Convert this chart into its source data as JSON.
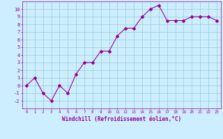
{
  "x": [
    0,
    1,
    2,
    3,
    4,
    5,
    6,
    7,
    8,
    9,
    10,
    11,
    12,
    13,
    14,
    15,
    16,
    17,
    18,
    19,
    20,
    21,
    22,
    23
  ],
  "y": [
    0,
    1,
    -1,
    -2,
    0,
    -1,
    1.5,
    3,
    3,
    4.5,
    4.5,
    6.5,
    7.5,
    7.5,
    9,
    10,
    10.5,
    8.5,
    8.5,
    8.5,
    9,
    9,
    9,
    8.5
  ],
  "line_color": "#990099",
  "marker": "D",
  "marker_size": 2,
  "bg_color": "#cceeff",
  "grid_color": "#99cccc",
  "xlabel": "Windchill (Refroidissement éolien,°C)",
  "xlabel_color": "#990099",
  "tick_color": "#990099",
  "ylim": [
    -3,
    11
  ],
  "xlim": [
    -0.5,
    23.5
  ],
  "yticks": [
    -2,
    -1,
    0,
    1,
    2,
    3,
    4,
    5,
    6,
    7,
    8,
    9,
    10
  ],
  "xticks": [
    0,
    1,
    2,
    3,
    4,
    5,
    6,
    7,
    8,
    9,
    10,
    11,
    12,
    13,
    14,
    15,
    16,
    17,
    18,
    19,
    20,
    21,
    22,
    23
  ]
}
